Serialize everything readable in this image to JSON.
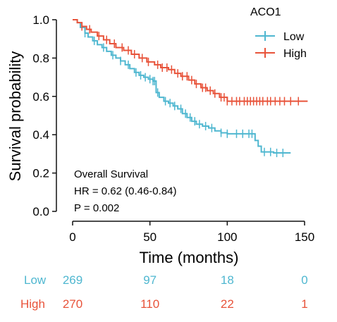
{
  "chart_data": {
    "type": "line",
    "subtype": "kaplan-meier",
    "xlabel": "Time (months)",
    "ylabel": "Survival probability",
    "xlim": [
      0,
      150
    ],
    "ylim": [
      0,
      1.0
    ],
    "xticks": [
      "0",
      "50",
      "100",
      "150"
    ],
    "yticks": [
      "0.0",
      "0.2",
      "0.4",
      "0.6",
      "0.8",
      "1.0"
    ],
    "grid": false,
    "legend": {
      "title": "ACO1",
      "position": "top-right",
      "entries": [
        {
          "label": "Low",
          "color": "#4fb7d0"
        },
        {
          "label": "High",
          "color": "#e8533a"
        }
      ]
    },
    "annotations": [
      "Overall Survival",
      "HR = 0.62 (0.46-0.84)",
      "P = 0.002"
    ],
    "series": [
      {
        "name": "Low",
        "color": "#4fb7d0",
        "x": [
          0,
          3,
          5,
          8,
          10,
          13,
          16,
          19,
          22,
          25,
          28,
          31,
          34,
          37,
          40,
          43,
          46,
          49,
          52,
          54,
          56,
          59,
          62,
          65,
          68,
          71,
          74,
          77,
          80,
          84,
          88,
          92,
          96,
          100,
          104,
          110,
          116,
          118,
          120,
          122,
          130,
          141
        ],
        "y": [
          1.0,
          0.985,
          0.96,
          0.93,
          0.91,
          0.89,
          0.87,
          0.855,
          0.835,
          0.815,
          0.8,
          0.785,
          0.765,
          0.745,
          0.725,
          0.71,
          0.7,
          0.69,
          0.68,
          0.62,
          0.595,
          0.575,
          0.565,
          0.55,
          0.535,
          0.51,
          0.49,
          0.47,
          0.455,
          0.445,
          0.435,
          0.42,
          0.41,
          0.405,
          0.405,
          0.405,
          0.405,
          0.37,
          0.34,
          0.31,
          0.305,
          0.305
        ],
        "censor_x": [
          8,
          14,
          20,
          26,
          31,
          36,
          41,
          44,
          47,
          50,
          52,
          53,
          55,
          60,
          63,
          66,
          70,
          73,
          76,
          79,
          82,
          86,
          90,
          96,
          100,
          106,
          110,
          114,
          116,
          124,
          128,
          132,
          136
        ]
      },
      {
        "name": "High",
        "color": "#e8533a",
        "x": [
          0,
          3,
          6,
          9,
          12,
          16,
          20,
          24,
          28,
          33,
          38,
          43,
          48,
          53,
          57,
          62,
          66,
          70,
          75,
          79,
          83,
          87,
          91,
          95,
          100,
          152
        ],
        "y": [
          1.0,
          0.985,
          0.965,
          0.95,
          0.935,
          0.915,
          0.895,
          0.875,
          0.855,
          0.84,
          0.82,
          0.8,
          0.78,
          0.765,
          0.75,
          0.74,
          0.72,
          0.705,
          0.685,
          0.665,
          0.645,
          0.63,
          0.615,
          0.595,
          0.575,
          0.575
        ],
        "censor_x": [
          6,
          11,
          17,
          22,
          27,
          32,
          36,
          40,
          45,
          49,
          55,
          58,
          61,
          64,
          68,
          71,
          74,
          77,
          80,
          84,
          86,
          89,
          92,
          96,
          98,
          100,
          103,
          106,
          108,
          111,
          113,
          115,
          117,
          119,
          121,
          123,
          126,
          128,
          131,
          134,
          137,
          141,
          146
        ]
      }
    ]
  },
  "risk_table": {
    "x": [
      0,
      50,
      100,
      150
    ],
    "rows": [
      {
        "label": "Low",
        "color": "#4fb7d0",
        "values": [
          "269",
          "97",
          "18",
          "0"
        ]
      },
      {
        "label": "High",
        "color": "#e8533a",
        "values": [
          "270",
          "110",
          "22",
          "1"
        ]
      }
    ]
  }
}
